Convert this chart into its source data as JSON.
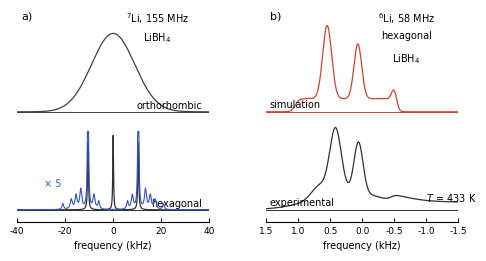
{
  "panel_a": {
    "title_line1": "$^{7}$Li, 155 MHz",
    "title_line2": "LiBH$_4$",
    "xlabel": "frequency (kHz)",
    "xlim": [
      -40,
      40
    ],
    "label_ortho": "orthorhombic",
    "label_hexa": "hexagonal",
    "label_x5": "× 5",
    "ortho_color": "#404040",
    "hexa_color": "#3355bb",
    "hexa_dark_color": "#303030",
    "xticks": [
      -40,
      -20,
      0,
      20,
      40
    ],
    "xtick_labels": [
      "-40",
      "-20",
      "0",
      "20",
      "40"
    ]
  },
  "panel_b": {
    "title_line1": "$^{6}$Li, 58 MHz",
    "title_line2": "hexagonal",
    "title_line3": "LiBH$_4$",
    "xlabel": "frequency (kHz)",
    "xlim": [
      1.5,
      -1.5
    ],
    "label_sim": "simulation",
    "label_exp": "experimental",
    "label_T": "$T$ = 433 K",
    "sim_color": "#cc4433",
    "exp_color": "#303030",
    "xticks": [
      1.5,
      1.0,
      0.5,
      0.0,
      -0.5,
      -1.0,
      -1.5
    ],
    "xtick_labels": [
      "1.5",
      "1.0",
      "0.5",
      "0.0",
      "-0.5",
      "-1.0",
      "-1.5"
    ]
  },
  "bg_color": "#ffffff",
  "label_fontsize": 7,
  "title_fontsize": 7,
  "tick_fontsize": 6.5
}
